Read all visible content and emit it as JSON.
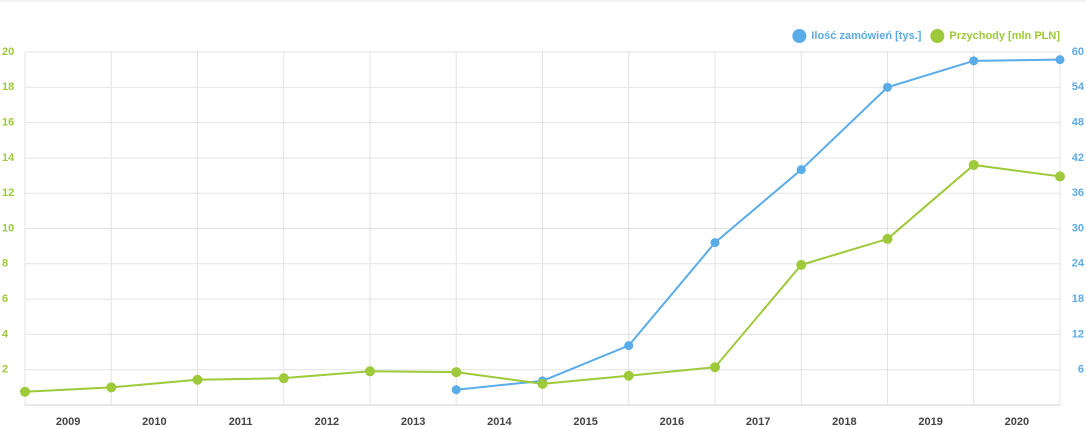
{
  "chart_data": {
    "type": "line",
    "x": [
      2008.5,
      2009.5,
      2010.5,
      2011.5,
      2012.5,
      2013.5,
      2014.5,
      2015.5,
      2016.5,
      2017.5,
      2018.5,
      2019.5,
      2020.5
    ],
    "xlim": [
      2008.5,
      2020.5
    ],
    "xticks": [
      2009,
      2010,
      2011,
      2012,
      2013,
      2014,
      2015,
      2016,
      2017,
      2018,
      2019,
      2020
    ],
    "ylim": [
      0,
      20
    ],
    "yticks": [
      2,
      4,
      6,
      8,
      10,
      12,
      14,
      16,
      18,
      20
    ],
    "y2lim": [
      0,
      60
    ],
    "y2ticks": [
      6,
      12,
      18,
      24,
      30,
      36,
      42,
      48,
      54,
      60
    ],
    "grid": true,
    "legend": "top-right",
    "series": [
      {
        "name": "Ilość zamówień [tys.]",
        "color": "#5aace8",
        "axis": "y2",
        "values": [
          null,
          null,
          null,
          null,
          null,
          2.6,
          4.1,
          10.1,
          27.6,
          40.0,
          54.0,
          58.5,
          58.7
        ]
      },
      {
        "name": "Przychody [mln PLN]",
        "color": "#9dc93a",
        "values": [
          0.75,
          1.0,
          1.43,
          1.52,
          1.91,
          1.86,
          1.2,
          1.66,
          2.14,
          7.94,
          9.41,
          13.6,
          12.95
        ]
      }
    ]
  }
}
